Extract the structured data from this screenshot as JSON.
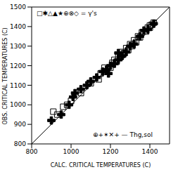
{
  "chart_data": {
    "type": "scatter",
    "x_label": "CALC. CRITICAL TEMPERATURES (C)",
    "y_label": "OBS. CRITICAL TEMPERATURES (C)",
    "xlim": [
      800,
      1500
    ],
    "ylim": [
      800,
      1500
    ],
    "xticks": [
      800,
      1000,
      1200,
      1400
    ],
    "yticks": [
      800,
      900,
      1000,
      1100,
      1200,
      1300,
      1400,
      1500
    ],
    "grid": false,
    "annotations": [
      "□✱△▲★⊕⊗◇ = γ's",
      "⊕+✶✕+ — Thg,sol"
    ],
    "series": [
      {
        "marker": "square",
        "color": "#000000",
        "x": [
          1180,
          1200,
          1210,
          1220,
          1230,
          1240,
          1250,
          1260,
          1270,
          1280,
          1290,
          1300,
          1310,
          1320,
          1330,
          1350,
          1360,
          1380,
          1390,
          1400,
          1410,
          1420,
          1150,
          1140,
          1100,
          1050,
          1000,
          980,
          960,
          910,
          930,
          1170,
          1260,
          1340,
          1400
        ],
        "values": [
          1170,
          1190,
          1215,
          1230,
          1220,
          1250,
          1245,
          1270,
          1265,
          1290,
          1280,
          1310,
          1300,
          1330,
          1320,
          1345,
          1370,
          1375,
          1395,
          1405,
          1410,
          1420,
          1160,
          1130,
          1110,
          1060,
          1020,
          1000,
          990,
          965,
          950,
          1190,
          1255,
          1350,
          1395
        ]
      },
      {
        "marker": "cross",
        "color": "#000000",
        "x": [
          900,
          950,
          990,
          1010,
          1050,
          1080,
          1100,
          1130,
          1160,
          1180,
          1200,
          1220,
          1240,
          1260,
          1280,
          1300,
          1320,
          1350,
          1370,
          1390,
          1420,
          1240,
          1190,
          1020
        ],
        "values": [
          920,
          950,
          1000,
          1040,
          1080,
          1100,
          1120,
          1140,
          1170,
          1180,
          1200,
          1210,
          1230,
          1250,
          1270,
          1300,
          1310,
          1350,
          1380,
          1385,
          1415,
          1265,
          1160,
          1060
        ]
      }
    ]
  }
}
